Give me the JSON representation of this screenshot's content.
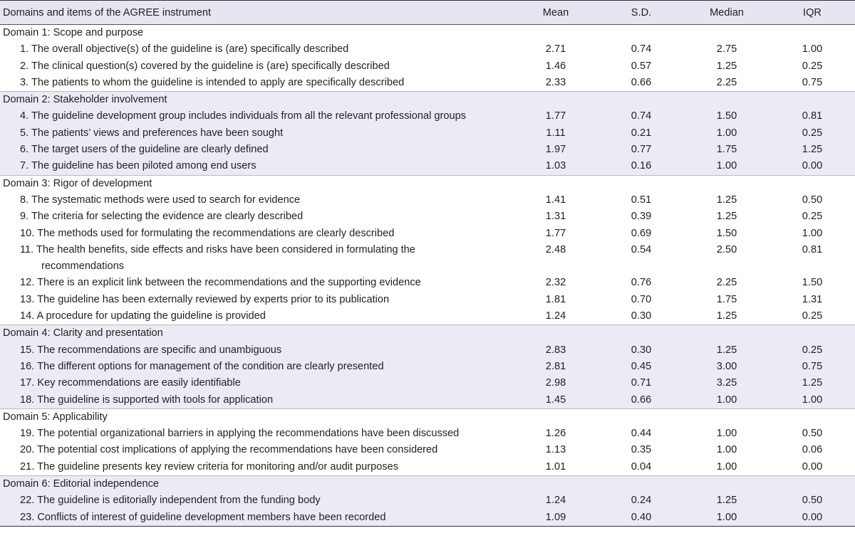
{
  "table": {
    "columns": [
      "Domains and items of the AGREE instrument",
      "Mean",
      "S.D.",
      "Median",
      "IQR"
    ],
    "domains": [
      {
        "title": "Domain 1: Scope and purpose",
        "items": [
          [
            "1. The overall objective(s) of the guideline is (are) specifically described",
            "2.71",
            "0.74",
            "2.75",
            "1.00"
          ],
          [
            "2. The clinical question(s) covered by the guideline is (are) specifically described",
            "1.46",
            "0.57",
            "1.25",
            "0.25"
          ],
          [
            "3. The patients to whom the guideline is intended to apply are specifically described",
            "2.33",
            "0.66",
            "2.25",
            "0.75"
          ]
        ]
      },
      {
        "title": "Domain 2: Stakeholder involvement",
        "items": [
          [
            "4. The guideline development group includes individuals from all the relevant professional groups",
            "1.77",
            "0.74",
            "1.50",
            "0.81"
          ],
          [
            "5. The patients’ views and preferences have been sought",
            "1.11",
            "0.21",
            "1.00",
            "0.25"
          ],
          [
            "6. The target users of the guideline are clearly defined",
            "1.97",
            "0.77",
            "1.75",
            "1.25"
          ],
          [
            "7. The guideline has been piloted among end users",
            "1.03",
            "0.16",
            "1.00",
            "0.00"
          ]
        ]
      },
      {
        "title": "Domain 3: Rigor of development",
        "items": [
          [
            "8. The systematic methods were used to search for evidence",
            "1.41",
            "0.51",
            "1.25",
            "0.50"
          ],
          [
            "9. The criteria for selecting the evidence are clearly described",
            "1.31",
            "0.39",
            "1.25",
            "0.25"
          ],
          [
            "10. The methods used for formulating the recommendations are clearly described",
            "1.77",
            "0.69",
            "1.50",
            "1.00"
          ],
          [
            "11. The health benefits, side effects and risks have been considered in formulating the recommendations",
            "2.48",
            "0.54",
            "2.50",
            "0.81"
          ],
          [
            "12. There is an explicit link between the recommendations and the supporting evidence",
            "2.32",
            "0.76",
            "2.25",
            "1.50"
          ],
          [
            "13. The guideline has been externally reviewed by experts prior to its publication",
            "1.81",
            "0.70",
            "1.75",
            "1.31"
          ],
          [
            "14. A procedure for updating the guideline is provided",
            "1.24",
            "0.30",
            "1.25",
            "0.25"
          ]
        ]
      },
      {
        "title": "Domain 4: Clarity and presentation",
        "items": [
          [
            "15. The recommendations are specific and unambiguous",
            "2.83",
            "0.30",
            "1.25",
            "0.25"
          ],
          [
            "16. The different options for management of the condition are clearly presented",
            "2.81",
            "0.45",
            "3.00",
            "0.75"
          ],
          [
            "17. Key recommendations are easily identifiable",
            "2.98",
            "0.71",
            "3.25",
            "1.25"
          ],
          [
            "18. The guideline is supported with tools for application",
            "1.45",
            "0.66",
            "1.00",
            "1.00"
          ]
        ]
      },
      {
        "title": "Domain 5: Applicability",
        "items": [
          [
            "19. The potential organizational barriers in applying the recommendations have been discussed",
            "1.26",
            "0.44",
            "1.00",
            "0.50"
          ],
          [
            "20. The potential cost implications of applying the recommendations have been considered",
            "1.13",
            "0.35",
            "1.00",
            "0.06"
          ],
          [
            "21. The guideline presents key review criteria for monitoring and/or audit purposes",
            "1.01",
            "0.04",
            "1.00",
            "0.00"
          ]
        ]
      },
      {
        "title": "Domain 6: Editorial independence",
        "items": [
          [
            "22. The guideline is editorially independent from the funding body",
            "1.24",
            "0.24",
            "1.25",
            "0.50"
          ],
          [
            "23. Conflicts of interest of guideline development members have been recorded",
            "1.09",
            "0.40",
            "1.00",
            "0.00"
          ]
        ]
      }
    ]
  }
}
